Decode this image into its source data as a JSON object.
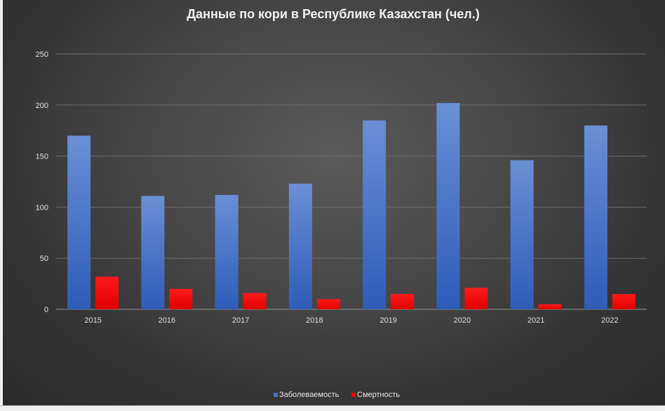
{
  "chart_data": {
    "type": "bar",
    "title": "Данные по кори в Республике Казахстан (чел.)",
    "xlabel": "",
    "ylabel": "",
    "categories": [
      "2015",
      "2016",
      "2017",
      "2018",
      "2019",
      "2020",
      "2021",
      "2022"
    ],
    "series": [
      {
        "name": "Заболеваемость",
        "color": "#4472c4",
        "values": [
          170,
          111,
          112,
          123,
          185,
          202,
          146,
          180
        ]
      },
      {
        "name": "Смертность",
        "color": "#ff0000",
        "values": [
          32,
          20,
          16,
          10,
          15,
          21,
          5,
          15
        ]
      }
    ],
    "ylim": [
      0,
      250
    ],
    "yticks": [
      0,
      50,
      100,
      150,
      200,
      250
    ],
    "grid": true,
    "legend": "bottom-center"
  }
}
